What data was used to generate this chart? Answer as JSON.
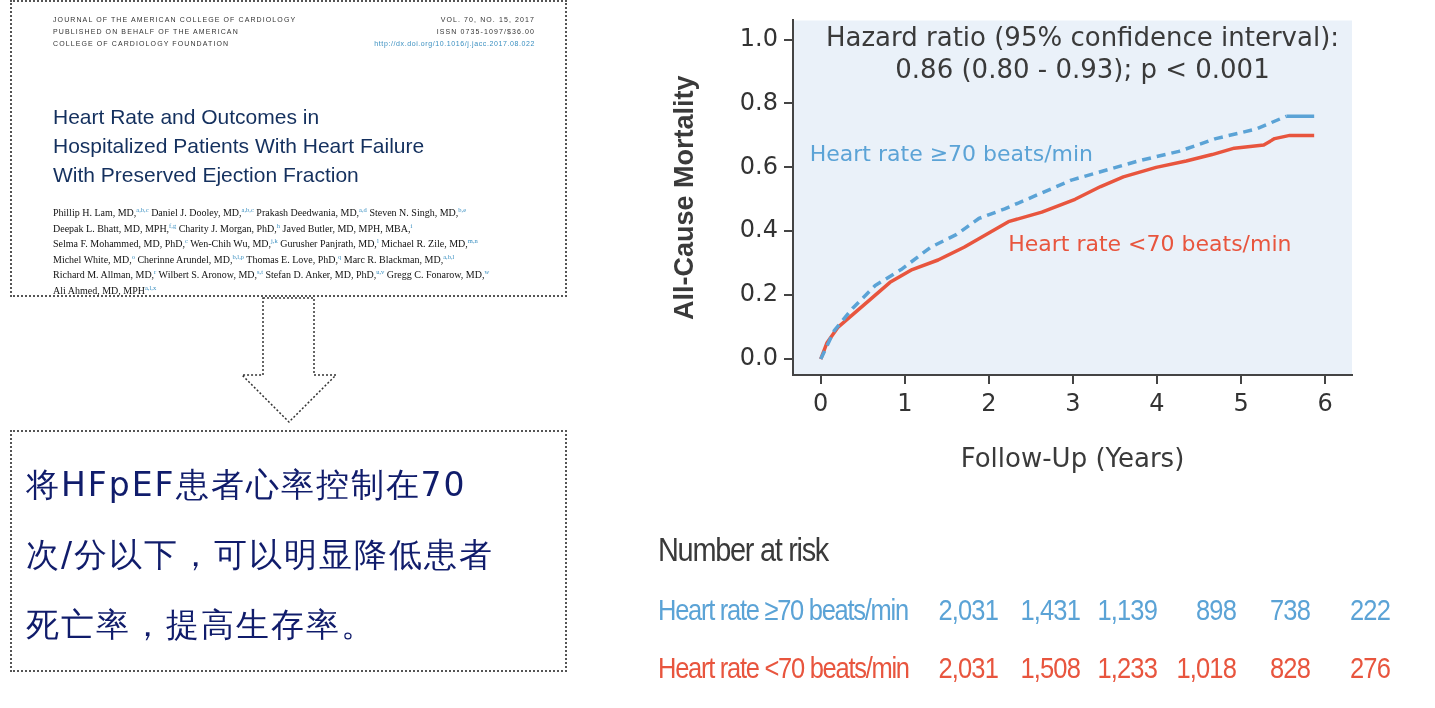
{
  "chart_data": [
    {
      "type": "other",
      "title": "Heart Rate and Outcomes in\nHospitalized Patients With Heart Failure\nWith Preserved Ejection Fraction",
      "annotations": [
        "JOURNAL OF THE AMERICAN COLLEGE OF CARDIOLOGY",
        "PUBLISHED ON BEHALF OF THE AMERICAN",
        "COLLEGE OF CARDIOLOGY FOUNDATION",
        "VOL. 70, NO. 15, 2017",
        "ISSN 0735-1097/$36.00",
        "http://dx.doi.org/10.1016/j.jacc.2017.08.022",
        "Phillip H. Lam, MD,$^{a,b,c}$ Daniel J. Dooley, MD,$^{a,b,c}$ Prakash Deedwania, MD,$^{a,d}$ Steven N. Singh, MD,$^{b,e}$",
        "Deepak L. Bhatt, MD, MPH,$^{f,g}$ Charity J. Morgan, PhD,$^{h}$ Javed Butler, MD, MPH, MBA,$^{i}$",
        "Selma F. Mohammed, MD, PhD,$^{c}$ Wen-Chih Wu, MD,$^{j,k}$ Gurusher Panjrath, MD,$^{l}$ Michael R. Zile, MD,$^{m,n}$",
        "Michel White, MD,$^{o}$ Cherinne Arundel, MD,$^{b,l,p}$ Thomas E. Love, PhD,$^{q}$ Marc R. Blackman, MD,$^{a,b,l}$",
        "Richard M. Allman, MD,$^{r}$ Wilbert S. Aronow, MD,$^{s,t}$ Stefan D. Anker, MD, PhD,$^{u,v}$ Gregg C. Fonarow, MD,$^{w}$",
        "Ali Ahmed, MD, MPH$^{a,l,x}$"
      ]
    },
    {
      "type": "other",
      "annotations": [
        "将HFpEF患者心率控制在70次/分以下，可以明显降低患者死亡率，提高生存率。"
      ]
    },
    {
      "type": "line",
      "xlabel": "Follow-Up (Years)",
      "ylabel": "All-Cause Mortality",
      "xlim": [
        -0.33,
        6.32
      ],
      "ylim": [
        -0.05,
        1.06
      ],
      "xticks": [
        0,
        1,
        2,
        3,
        4,
        5,
        6
      ],
      "yticks": [
        {
          "value": 0,
          "label": "0.0"
        },
        {
          "value": 0.2,
          "label": "0.2"
        },
        {
          "value": 0.4,
          "label": "0.4"
        },
        {
          "value": 0.6,
          "label": "0.6"
        },
        {
          "value": 0.8,
          "label": "0.8"
        },
        {
          "value": 1,
          "label": "1.0"
        }
      ],
      "grid": false,
      "legend": false,
      "series": [
        {
          "name": "Heart rate ≥70 beats/min",
          "color": "#5ba3d6",
          "line_style": "dashed",
          "x": [
            0,
            0.163,
            0.383,
            0.648,
            0.956,
            1.308,
            1.617,
            1.881,
            2.189,
            2.63,
            2.982,
            3.379,
            3.775,
            4.26,
            4.7,
            5.18,
            5.36,
            5.54,
            5.87
          ],
          "values": [
            0,
            0.09,
            0.16,
            0.23,
            0.28,
            0.35,
            0.39,
            0.44,
            0.47,
            0.52,
            0.56,
            0.59,
            0.62,
            0.65,
            0.69,
            0.72,
            0.74,
            0.76,
            0.76
          ]
        },
        {
          "name": "Heart rate <70 beats/min",
          "color": "#e8553e",
          "line_style": "solid",
          "x": [
            0,
            0.075,
            0.207,
            0.383,
            0.604,
            0.824,
            1.088,
            1.396,
            1.705,
            1.969,
            2.233,
            2.63,
            3.026,
            3.33,
            3.6,
            3.99,
            4.348,
            4.656,
            4.92,
            5.27,
            5.4,
            5.58,
            5.87
          ],
          "values": [
            0,
            0.051,
            0.1,
            0.14,
            0.19,
            0.24,
            0.28,
            0.31,
            0.35,
            0.39,
            0.43,
            0.46,
            0.5,
            0.54,
            0.57,
            0.6,
            0.62,
            0.64,
            0.66,
            0.67,
            0.69,
            0.7,
            0.7
          ]
        }
      ],
      "annotations": [
        "Hazard ratio (95% confidence interval):",
        "0.86 (0.80 - 0.93); p < 0.001",
        "Number at risk",
        "Heart rate ≥70 beats/min",
        "2,031",
        "1,431",
        "1,139",
        "898",
        "738",
        "222",
        "Heart rate <70 beats/min",
        "2,031",
        "1,508",
        "1,233",
        "1,018",
        "828",
        "276"
      ]
    }
  ]
}
